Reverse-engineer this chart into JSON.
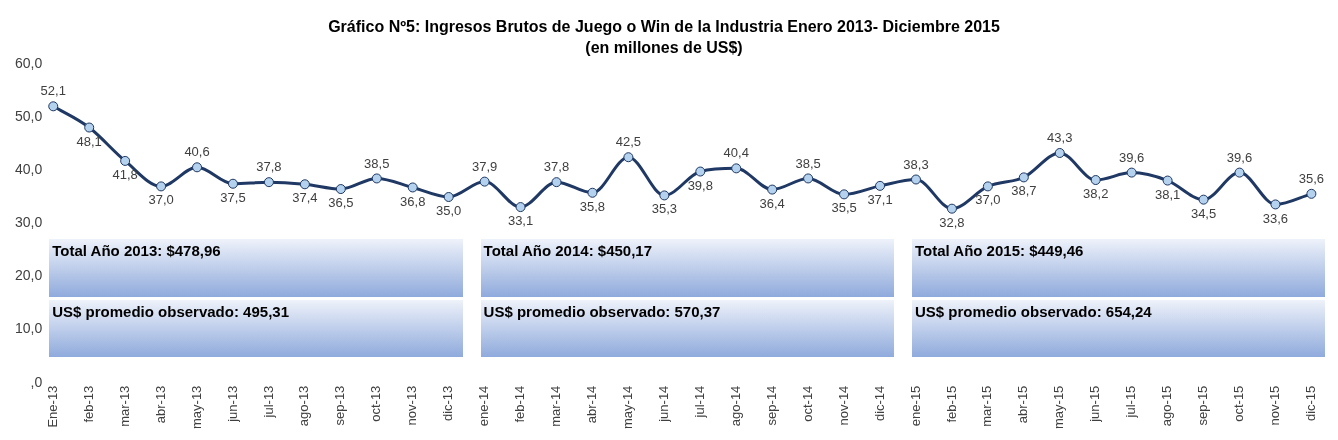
{
  "chart_data": {
    "type": "line",
    "title": "Gráfico Nº5: Ingresos Brutos de Juego o Win de la Industria Enero 2013- Diciembre 2015",
    "subtitle": "(en millones de US$)",
    "categories": [
      "Ene-13",
      "feb-13",
      "mar-13",
      "abr-13",
      "may-13",
      "jun-13",
      "jul-13",
      "ago-13",
      "sep-13",
      "oct-13",
      "nov-13",
      "dic-13",
      "ene-14",
      "feb-14",
      "mar-14",
      "abr-14",
      "may-14",
      "jun-14",
      "jul-14",
      "ago-14",
      "sep-14",
      "oct-14",
      "nov-14",
      "dic-14",
      "ene-15",
      "feb-15",
      "mar-15",
      "abr-15",
      "may-15",
      "jun-15",
      "jul-15",
      "ago-15",
      "sep-15",
      "oct-15",
      "nov-15",
      "dic-15"
    ],
    "series": [
      {
        "color": "#1f3864",
        "values": [
          52.1,
          48.1,
          41.8,
          37.0,
          40.6,
          37.5,
          37.8,
          37.4,
          36.5,
          38.5,
          36.8,
          35.0,
          37.9,
          33.1,
          37.8,
          35.8,
          42.5,
          35.3,
          39.8,
          40.4,
          36.4,
          38.5,
          35.5,
          37.1,
          38.3,
          32.8,
          37.0,
          38.7,
          43.3,
          38.2,
          39.6,
          38.1,
          34.5,
          39.6,
          33.6,
          35.6
        ],
        "value_labels": [
          "52,1",
          "48,1",
          "41,8",
          "37,0",
          "40,6",
          "37,5",
          "37,8",
          "37,4",
          "36,5",
          "38,5",
          "36,8",
          "35,0",
          "37,9",
          "33,1",
          "37,8",
          "35,8",
          "42,5",
          "35,3",
          "39,8",
          "40,4",
          "36,4",
          "38,5",
          "35,5",
          "37,1",
          "38,3",
          "32,8",
          "37,0",
          "38,7",
          "43,3",
          "38,2",
          "39,6",
          "38,1",
          "34,5",
          "39,6",
          "33,6",
          "35,6"
        ]
      }
    ],
    "ylim": [
      0,
      60
    ],
    "yticks": [
      {
        "value": 0,
        "label": ",0"
      },
      {
        "value": 10,
        "label": "10,0"
      },
      {
        "value": 20,
        "label": "20,0"
      },
      {
        "value": 30,
        "label": "30,0"
      },
      {
        "value": 40,
        "label": "40,0"
      },
      {
        "value": 50,
        "label": "50,0"
      },
      {
        "value": 60,
        "label": "60,0"
      }
    ],
    "grid": false,
    "legend": false,
    "marker": "circle",
    "line_style": "solid",
    "annotations": [
      "Total Año 2013: $478,96",
      "US$ promedio observado: 495,31",
      "Total Año 2014: $450,17",
      "US$ promedio observado: 570,37",
      "Total Año 2015: $449,46",
      "US$ promedio observado: 654,24"
    ]
  }
}
